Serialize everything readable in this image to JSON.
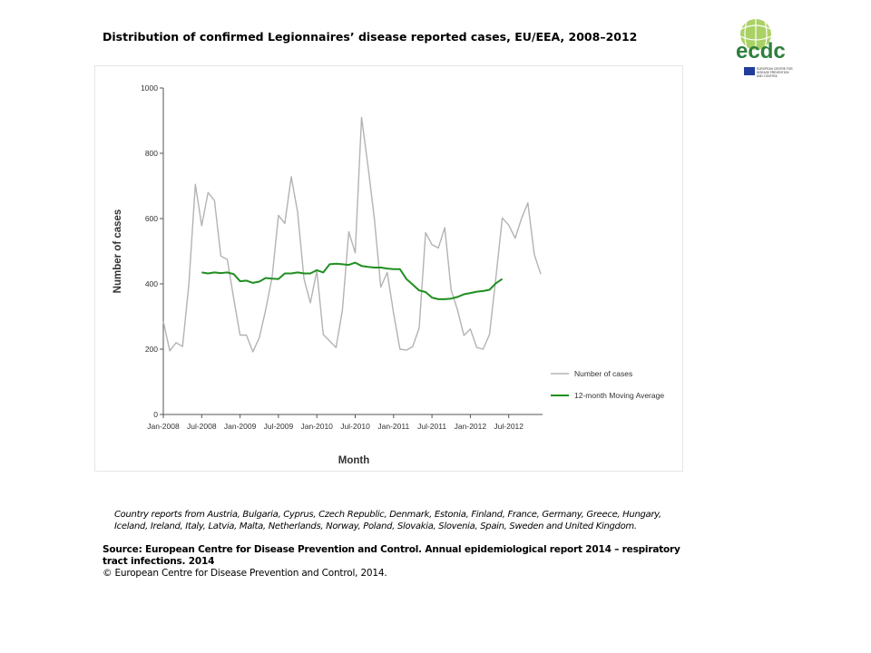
{
  "title": "Distribution  of confirmed  Legionnaires’ disease reported cases, EU/EEA,  2008–2012",
  "logo": {
    "text": "ecdc",
    "subtext": "EUROPEAN CENTRE FOR DISEASE PREVENTION AND CONTROL"
  },
  "chart_data": {
    "type": "line",
    "xlabel": "Month",
    "ylabel": "Number of cases",
    "ylim": [
      0,
      1000
    ],
    "yticks": [
      "0",
      "200",
      "400",
      "600",
      "800",
      "1000"
    ],
    "xticks": [
      "Jan-2008",
      "Jul-2008",
      "Jan-2009",
      "Jul-2009",
      "Jan-2010",
      "Jul-2010",
      "Jan-2011",
      "Jul-2011",
      "Jan-2012",
      "Jul-2012"
    ],
    "x_start": "Jan-2008",
    "x_end": "Dec-2012",
    "grid": false,
    "legend_placement": "right",
    "series": [
      {
        "name": "Number of cases",
        "color": "#b3b3b3",
        "values": [
          285,
          195,
          220,
          208,
          400,
          705,
          578,
          680,
          655,
          485,
          475,
          355,
          243,
          243,
          192,
          235,
          320,
          420,
          610,
          585,
          728,
          620,
          415,
          342,
          440,
          245,
          225,
          205,
          320,
          560,
          495,
          910,
          760,
          600,
          390,
          435,
          310,
          200,
          197,
          208,
          265,
          557,
          520,
          510,
          572,
          380,
          320,
          242,
          262,
          205,
          200,
          245,
          420,
          602,
          580,
          540,
          600,
          648,
          490,
          430
        ]
      },
      {
        "name": "12-month Moving Average",
        "color": "#1f8f1f",
        "values": [
          null,
          null,
          null,
          null,
          null,
          null,
          435,
          432,
          435,
          433,
          435,
          430,
          408,
          410,
          403,
          407,
          418,
          416,
          415,
          432,
          432,
          435,
          432,
          432,
          442,
          435,
          460,
          462,
          460,
          458,
          465,
          455,
          452,
          450,
          450,
          447,
          445,
          445,
          415,
          398,
          380,
          375,
          358,
          353,
          353,
          355,
          360,
          368,
          372,
          376,
          378,
          382,
          402,
          415,
          null,
          null,
          null,
          null,
          null,
          null
        ]
      }
    ]
  },
  "footnote": {
    "countries": "Country reports from Austria, Bulgaria, Cyprus, Czech Republic, Denmark, Estonia, Finland, France, Germany, Greece, Hungary, Iceland, Ireland, Italy, Latvia, Malta, Netherlands, Norway, Poland, Slovakia, Slovenia, Spain, Sweden and United Kingdom.",
    "source": "Source: European Centre for Disease Prevention and Control.  Annual epidemiological report 2014 – respiratory tract infections. 2014",
    "copyright": "© European Centre for Disease Prevention and Control, 2014."
  }
}
